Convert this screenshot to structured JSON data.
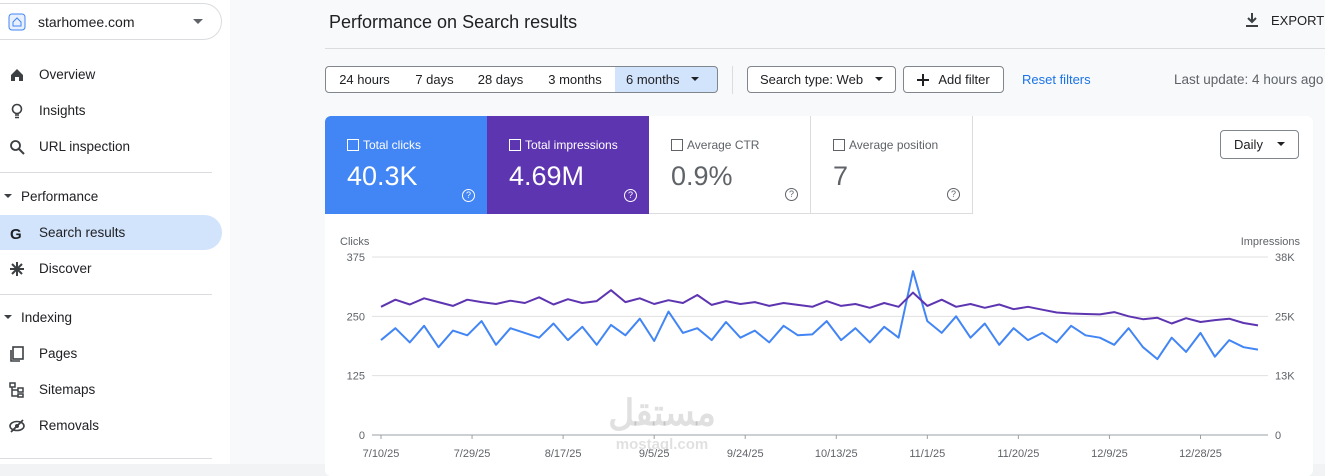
{
  "sidebar": {
    "property": "starhomee.com",
    "items": [
      "Overview",
      "Insights",
      "URL inspection"
    ],
    "performance": {
      "title": "Performance",
      "items": [
        "Search results",
        "Discover"
      ]
    },
    "indexing": {
      "title": "Indexing",
      "items": [
        "Pages",
        "Sitemaps",
        "Removals"
      ]
    }
  },
  "header": {
    "title": "Performance on Search results",
    "export": "EXPORT"
  },
  "filters": {
    "ranges": [
      "24 hours",
      "7 days",
      "28 days",
      "3 months",
      "6 months"
    ],
    "search_type": "Search type: Web",
    "add_filter": "Add filter",
    "reset": "Reset filters",
    "last_update": "Last update: 4 hours ago"
  },
  "metrics": [
    {
      "label": "Total clicks",
      "value": "40.3K"
    },
    {
      "label": "Total impressions",
      "value": "4.69M"
    },
    {
      "label": "Average CTR",
      "value": "0.9%"
    },
    {
      "label": "Average position",
      "value": "7"
    }
  ],
  "granularity": "Daily",
  "watermark": {
    "arabic": "مستقل",
    "latin": "mostaql.com"
  },
  "chart_data": {
    "type": "line",
    "x": [
      "7/10/25",
      "7/13/25",
      "7/16/25",
      "7/19/25",
      "7/22/25",
      "7/25/25",
      "7/28/25",
      "7/31/25",
      "8/3/25",
      "8/6/25",
      "8/9/25",
      "8/12/25",
      "8/15/25",
      "8/18/25",
      "8/21/25",
      "8/24/25",
      "8/27/25",
      "8/30/25",
      "9/2/25",
      "9/5/25",
      "9/8/25",
      "9/11/25",
      "9/14/25",
      "9/17/25",
      "9/20/25",
      "9/23/25",
      "9/26/25",
      "9/29/25",
      "10/2/25",
      "10/5/25",
      "10/8/25",
      "10/11/25",
      "10/14/25",
      "10/17/25",
      "10/20/25",
      "10/23/25",
      "10/26/25",
      "10/29/25",
      "11/1/25",
      "11/4/25",
      "11/7/25",
      "11/10/25",
      "11/13/25",
      "11/16/25",
      "11/19/25",
      "11/22/25",
      "11/25/25",
      "11/28/25",
      "12/1/25",
      "12/4/25",
      "12/7/25",
      "12/10/25",
      "12/13/25",
      "12/16/25",
      "12/19/25",
      "12/22/25",
      "12/25/25",
      "12/28/25",
      "12/31/25",
      "1/3/26",
      "1/6/26",
      "1/9/26"
    ],
    "xticks": [
      "7/10/25",
      "7/29/25",
      "8/17/25",
      "9/5/25",
      "9/24/25",
      "10/13/25",
      "11/1/25",
      "11/20/25",
      "12/9/25",
      "12/28/25"
    ],
    "ylim": [
      0,
      375
    ],
    "yticks": [
      0,
      125,
      250,
      375
    ],
    "y2lim": [
      0,
      37500
    ],
    "y2ticks": [
      0,
      {
        "value": 12500,
        "label": "13K"
      },
      {
        "value": 25000,
        "label": "25K"
      },
      {
        "value": 37500,
        "label": "38K"
      }
    ],
    "grid": true,
    "series": [
      {
        "name": "Clicks",
        "color": "#4285f4",
        "values": [
          200,
          225,
          195,
          230,
          185,
          220,
          210,
          240,
          190,
          225,
          215,
          205,
          235,
          200,
          228,
          190,
          232,
          210,
          245,
          198,
          260,
          215,
          225,
          200,
          238,
          205,
          220,
          195,
          230,
          210,
          212,
          240,
          200,
          225,
          195,
          228,
          205,
          345,
          240,
          215,
          250,
          205,
          235,
          190,
          225,
          200,
          215,
          195,
          230,
          210,
          205,
          190,
          225,
          185,
          160,
          205,
          175,
          215,
          165,
          200,
          185,
          180
        ]
      },
      {
        "name": "Impressions",
        "color": "#5e35b1",
        "axis": "y2",
        "values": [
          27000,
          28500,
          27500,
          28800,
          28000,
          27200,
          28500,
          28000,
          27600,
          28300,
          27800,
          29000,
          27500,
          28600,
          27800,
          28200,
          30500,
          28000,
          28800,
          27600,
          28400,
          27800,
          29500,
          27400,
          28200,
          27600,
          28000,
          27200,
          27800,
          27400,
          27000,
          28200,
          27200,
          27600,
          26800,
          27800,
          27000,
          30000,
          27200,
          28500,
          27000,
          27600,
          26800,
          27500,
          26500,
          27000,
          26400,
          25800,
          25600,
          25500,
          25400,
          25900,
          25000,
          24400,
          24700,
          23500,
          24600,
          23800,
          24200,
          24500,
          23600,
          23100
        ]
      }
    ]
  }
}
